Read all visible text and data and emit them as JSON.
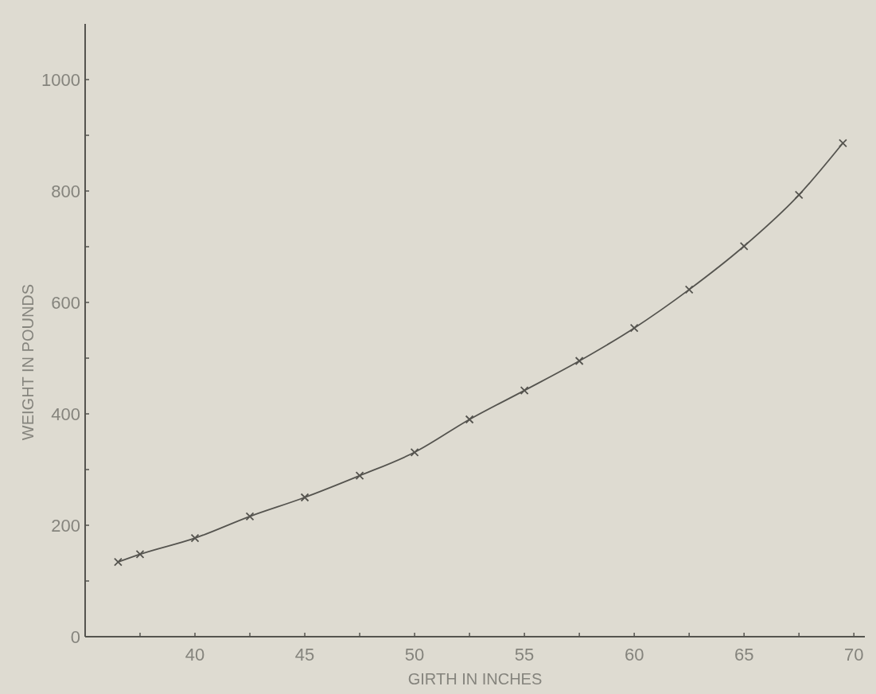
{
  "chart_data": {
    "type": "line",
    "xlabel": "GIRTH   IN   INCHES",
    "ylabel": "WEIGHT   IN   POUNDS",
    "x": [
      36.5,
      37.5,
      40,
      42.5,
      45,
      47.5,
      50,
      52.5,
      55,
      57.5,
      60,
      62.5,
      65,
      67.5,
      69.5
    ],
    "series": [
      {
        "color": "#55544f",
        "values": [
          134,
          148,
          177,
          216,
          250,
          289,
          331,
          390,
          442,
          495,
          554,
          623,
          701,
          793,
          886
        ]
      }
    ],
    "xlim": [
      35,
      70.5
    ],
    "ylim": [
      0,
      1100
    ],
    "xticks": [
      {
        "value": 35,
        "label": null
      },
      {
        "value": 37.5,
        "label": null
      },
      40,
      {
        "value": 42.5,
        "label": null
      },
      45,
      {
        "value": 47.5,
        "label": null
      },
      50,
      {
        "value": 52.5,
        "label": null
      },
      55,
      {
        "value": 57.5,
        "label": null
      },
      60,
      {
        "value": 62.5,
        "label": null
      },
      65,
      {
        "value": 67.5,
        "label": null
      },
      70
    ],
    "yticks": [
      0,
      {
        "value": 100,
        "label": null
      },
      200,
      {
        "value": 300,
        "label": null
      },
      400,
      {
        "value": 500,
        "label": null
      },
      600,
      {
        "value": 700,
        "label": null
      },
      800,
      {
        "value": 900,
        "label": null
      },
      1000
    ],
    "grid": false,
    "marker": "cross",
    "line_style": "solid"
  }
}
